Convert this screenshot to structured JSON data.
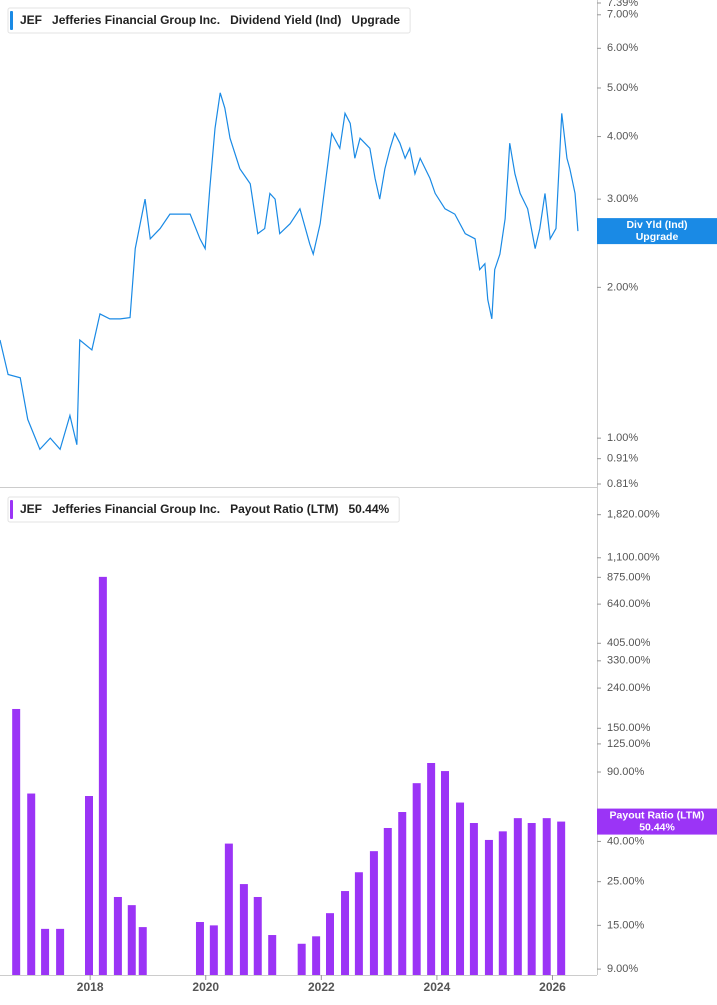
{
  "chart_data": [
    {
      "type": "line",
      "ticker": "JEF",
      "company": "Jefferies Financial Group Inc.",
      "title": "Dividend Yield (Ind)",
      "current": "Upgrade",
      "axis_box_title": "Div Yld (Ind)",
      "color": "#1a8ae5",
      "log_y": true,
      "xlim": [
        2016.44,
        2026.77
      ],
      "ylim": [
        0.81,
        7.39
      ],
      "yticks": [
        {
          "value": 0.81,
          "label": "0.81%"
        },
        {
          "value": 0.91,
          "label": "0.91%"
        },
        {
          "value": 1,
          "label": "1.00%"
        },
        {
          "value": 2,
          "label": "2.00%"
        },
        {
          "value": 3,
          "label": "3.00%"
        },
        {
          "value": 4,
          "label": "4.00%"
        },
        {
          "value": 5,
          "label": "5.00%"
        },
        {
          "value": 6,
          "label": "6.00%"
        },
        {
          "value": 7,
          "label": "7.00%"
        },
        {
          "value": 7.39,
          "label": "7.39%"
        }
      ],
      "x": [
        2016.44,
        2016.58,
        2016.79,
        2016.92,
        2017.13,
        2017.31,
        2017.48,
        2017.65,
        2017.77,
        2017.82,
        2018.03,
        2018.17,
        2018.34,
        2018.52,
        2018.69,
        2018.78,
        2018.95,
        2019.04,
        2019.21,
        2019.38,
        2019.55,
        2019.73,
        2019.9,
        2019.99,
        2020.07,
        2020.16,
        2020.25,
        2020.33,
        2020.42,
        2020.59,
        2020.77,
        2020.9,
        2021.02,
        2021.11,
        2021.2,
        2021.28,
        2021.46,
        2021.63,
        2021.8,
        2021.86,
        2021.98,
        2022.08,
        2022.18,
        2022.32,
        2022.41,
        2022.5,
        2022.58,
        2022.67,
        2022.84,
        2022.93,
        2023.01,
        2023.1,
        2023.19,
        2023.27,
        2023.36,
        2023.45,
        2023.53,
        2023.62,
        2023.71,
        2023.88,
        2023.97,
        2024.14,
        2024.31,
        2024.49,
        2024.66,
        2024.74,
        2024.83,
        2024.88,
        2024.95,
        2025.0,
        2025.09,
        2025.18,
        2025.26,
        2025.35,
        2025.44,
        2025.57,
        2025.7,
        2025.78,
        2025.87,
        2025.96,
        2026.06,
        2026.16,
        2026.25,
        2026.3,
        2026.39,
        2026.44
      ],
      "values": [
        1.57,
        1.34,
        1.32,
        1.09,
        0.95,
        1.0,
        0.95,
        1.11,
        0.97,
        1.57,
        1.5,
        1.77,
        1.73,
        1.73,
        1.74,
        2.39,
        3.0,
        2.5,
        2.62,
        2.8,
        2.8,
        2.8,
        2.5,
        2.39,
        3.15,
        4.15,
        4.89,
        4.56,
        3.97,
        3.45,
        3.22,
        2.56,
        2.62,
        3.08,
        3.0,
        2.56,
        2.68,
        2.87,
        2.44,
        2.33,
        2.68,
        3.3,
        4.06,
        3.79,
        4.45,
        4.25,
        3.62,
        3.97,
        3.79,
        3.3,
        3.0,
        3.45,
        3.79,
        4.06,
        3.88,
        3.62,
        3.79,
        3.37,
        3.62,
        3.3,
        3.08,
        2.87,
        2.8,
        2.56,
        2.5,
        2.17,
        2.23,
        1.89,
        1.73,
        2.17,
        2.33,
        2.74,
        3.88,
        3.37,
        3.08,
        2.87,
        2.39,
        2.62,
        3.08,
        2.5,
        2.62,
        4.45,
        3.62,
        3.45,
        3.08,
        2.59
      ]
    },
    {
      "type": "bar",
      "ticker": "JEF",
      "company": "Jefferies Financial Group Inc.",
      "title": "Payout Ratio (LTM)",
      "current": "50.44%",
      "axis_box_title": "Payout Ratio (LTM)",
      "color": "#9b34f6",
      "log_y": true,
      "xlim": [
        2016.44,
        2026.77
      ],
      "xticks": [
        2018,
        2020,
        2022,
        2024,
        2026
      ],
      "ylim": [
        8.4,
        2400
      ],
      "yticks": [
        {
          "value": 9,
          "label": "9.00%"
        },
        {
          "value": 15,
          "label": "15.00%"
        },
        {
          "value": 25,
          "label": "25.00%"
        },
        {
          "value": 40,
          "label": "40.00%"
        },
        {
          "value": 90,
          "label": "90.00%"
        },
        {
          "value": 125,
          "label": "125.00%"
        },
        {
          "value": 150,
          "label": "150.00%"
        },
        {
          "value": 240,
          "label": "240.00%"
        },
        {
          "value": 330,
          "label": "330.00%"
        },
        {
          "value": 405,
          "label": "405.00%"
        },
        {
          "value": 640,
          "label": "640.00%"
        },
        {
          "value": 875,
          "label": "875.00%"
        },
        {
          "value": 1100,
          "label": "1,100.00%"
        },
        {
          "value": 1820,
          "label": "1,820.00%"
        }
      ],
      "x": [
        2016.72,
        2016.98,
        2017.22,
        2017.48,
        2017.98,
        2018.22,
        2018.48,
        2018.72,
        2018.91,
        2019.9,
        2020.14,
        2020.4,
        2020.66,
        2020.9,
        2021.15,
        2021.66,
        2021.91,
        2022.15,
        2022.41,
        2022.65,
        2022.91,
        2023.15,
        2023.4,
        2023.65,
        2023.9,
        2024.14,
        2024.4,
        2024.64,
        2024.9,
        2025.14,
        2025.4,
        2025.64,
        2025.9,
        2026.15
      ],
      "values": [
        188,
        70,
        14.4,
        14.4,
        68,
        880,
        20.9,
        19,
        14.7,
        15.6,
        15,
        39,
        24.3,
        20.9,
        13.4,
        12.1,
        13.2,
        17.3,
        22.4,
        27.9,
        35.7,
        46.8,
        56.4,
        79,
        100,
        91,
        63,
        49.6,
        40.7,
        45,
        52.5,
        49.6,
        52.5,
        50.44
      ]
    }
  ]
}
